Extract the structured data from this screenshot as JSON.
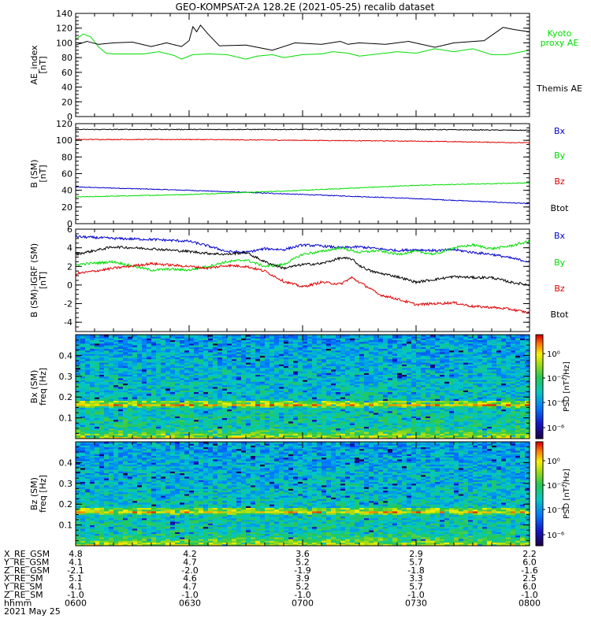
{
  "title": "GEO-KOMPSAT-2A 128.2E (2021-05-25) recalib dataset",
  "chart_data": [
    {
      "type": "line",
      "ylabel": "AE_index\n[nT]",
      "ylim": [
        0,
        140
      ],
      "yticks": [
        0,
        20,
        40,
        60,
        80,
        100,
        120,
        140
      ],
      "xlim": [
        0,
        120
      ],
      "legend": [
        "Kyoto\nproxy AE",
        "Themis AE"
      ],
      "series": [
        {
          "name": "Kyoto\nproxy AE",
          "color": "#00dd00",
          "x": [
            0,
            2,
            4,
            6,
            8,
            10,
            13,
            18,
            22,
            26,
            28,
            31,
            35,
            40,
            45,
            48,
            52,
            55,
            60,
            65,
            68,
            72,
            75,
            80,
            85,
            90,
            95,
            100,
            105,
            110,
            114,
            118,
            120
          ],
          "y": [
            105,
            112,
            108,
            95,
            86,
            85,
            85,
            85,
            88,
            83,
            78,
            84,
            85,
            84,
            78,
            82,
            84,
            80,
            84,
            85,
            88,
            86,
            82,
            85,
            88,
            86,
            92,
            88,
            92,
            84,
            84,
            88,
            90
          ]
        },
        {
          "name": "Themis AE",
          "color": "#000000",
          "x": [
            0,
            3,
            6,
            10,
            15,
            20,
            24,
            28,
            30,
            31,
            32,
            33,
            35,
            38,
            45,
            52,
            58,
            65,
            70,
            72,
            75,
            82,
            88,
            95,
            100,
            108,
            113,
            116,
            120
          ],
          "y": [
            97,
            102,
            98,
            100,
            101,
            95,
            100,
            95,
            103,
            122,
            115,
            124,
            112,
            96,
            97,
            90,
            100,
            98,
            102,
            98,
            100,
            98,
            102,
            94,
            100,
            103,
            121,
            118,
            115
          ]
        }
      ]
    },
    {
      "type": "line",
      "ylabel": "B (SM)\n[nT]",
      "ylim": [
        0,
        120
      ],
      "yticks": [
        0,
        20,
        40,
        60,
        80,
        100,
        120
      ],
      "xlim": [
        0,
        120
      ],
      "legend": [
        "Bx",
        "By",
        "Bz",
        "Btot"
      ],
      "series": [
        {
          "name": "Bx",
          "color": "#0000cc",
          "x": [
            0,
            30,
            60,
            90,
            120
          ],
          "y": [
            44,
            40,
            35,
            30,
            24
          ]
        },
        {
          "name": "By",
          "color": "#00dd00",
          "x": [
            0,
            30,
            60,
            90,
            120
          ],
          "y": [
            32,
            35,
            40,
            46,
            49
          ]
        },
        {
          "name": "Bz",
          "color": "#dd0000",
          "x": [
            0,
            30,
            60,
            90,
            120
          ],
          "y": [
            101,
            101,
            100,
            99,
            97
          ]
        },
        {
          "name": "Btot",
          "color": "#000000",
          "x": [
            0,
            30,
            60,
            90,
            120
          ],
          "y": [
            113,
            113,
            113,
            113,
            112
          ]
        }
      ]
    },
    {
      "type": "line",
      "ylabel": "B (SM)-IGRF (SM)\n[nT]",
      "ylim": [
        -5,
        6
      ],
      "yticks": [
        -4,
        -2,
        0,
        2,
        4,
        6
      ],
      "xlim": [
        0,
        120
      ],
      "legend": [
        "Bx",
        "By",
        "Bz",
        "Btot"
      ],
      "series": [
        {
          "name": "Bx",
          "color": "#0000cc",
          "x": [
            0,
            10,
            20,
            30,
            35,
            40,
            45,
            50,
            55,
            60,
            65,
            70,
            75,
            80,
            85,
            90,
            95,
            100,
            105,
            110,
            115,
            120
          ],
          "y": [
            5.2,
            5.0,
            4.9,
            4.7,
            4.2,
            3.6,
            3.5,
            3.9,
            3.8,
            4.3,
            4.2,
            4.0,
            4.1,
            3.9,
            3.7,
            3.8,
            3.7,
            3.8,
            3.5,
            3.3,
            2.9,
            2.5
          ]
        },
        {
          "name": "By",
          "color": "#00dd00",
          "x": [
            0,
            10,
            20,
            25,
            30,
            35,
            40,
            45,
            50,
            55,
            60,
            65,
            70,
            75,
            80,
            85,
            90,
            95,
            100,
            105,
            110,
            115,
            120
          ],
          "y": [
            2.2,
            2.5,
            1.6,
            1.7,
            1.6,
            2.0,
            2.5,
            2.7,
            2.0,
            2.2,
            3.3,
            3.6,
            4.0,
            3.5,
            3.7,
            3.3,
            3.6,
            3.3,
            4.0,
            4.3,
            3.9,
            4.2,
            4.7
          ]
        },
        {
          "name": "Bz",
          "color": "#dd0000",
          "x": [
            0,
            10,
            20,
            30,
            35,
            40,
            45,
            50,
            55,
            60,
            63,
            65,
            70,
            73,
            75,
            78,
            80,
            85,
            90,
            95,
            100,
            105,
            110,
            115,
            120
          ],
          "y": [
            1.2,
            1.8,
            2.3,
            2.0,
            1.8,
            2.1,
            2.0,
            1.5,
            0.4,
            -0.2,
            0.1,
            0.3,
            0.1,
            0.8,
            0.3,
            -0.4,
            -1.0,
            -1.5,
            -2.1,
            -2.0,
            -1.9,
            -2.3,
            -2.4,
            -2.6,
            -3.0
          ]
        },
        {
          "name": "Btot",
          "color": "#000000",
          "x": [
            0,
            10,
            20,
            30,
            35,
            40,
            45,
            50,
            55,
            60,
            65,
            70,
            73,
            75,
            78,
            80,
            85,
            90,
            95,
            100,
            105,
            110,
            115,
            120
          ],
          "y": [
            3.3,
            4.1,
            3.9,
            3.6,
            3.4,
            3.3,
            3.5,
            2.5,
            1.8,
            2.2,
            2.3,
            2.9,
            2.8,
            2.1,
            1.5,
            1.3,
            0.9,
            0.3,
            0.6,
            0.9,
            0.8,
            0.8,
            0.3,
            0.0
          ]
        }
      ]
    },
    {
      "type": "heatmap",
      "ylabel": "Bx (SM)\nfreq [Hz]",
      "ylim": [
        0,
        0.5
      ],
      "yticks": [
        0.1,
        0.2,
        0.3,
        0.4
      ],
      "xlim": [
        0,
        120
      ],
      "colorbar": {
        "label": "PSD [nT²/Hz]",
        "scale": "log",
        "range": [
          1e-09,
          30
        ],
        "ticks": [
          "10⁰",
          "10⁻²",
          "10⁻⁴",
          "10⁻⁶"
        ]
      }
    },
    {
      "type": "heatmap",
      "ylabel": "Bz (SM)\nfreq [Hz]",
      "ylim": [
        0,
        0.5
      ],
      "yticks": [
        0.1,
        0.2,
        0.3,
        0.4
      ],
      "xlim": [
        0,
        120
      ],
      "colorbar": {
        "label": "PSD [nT²/Hz]",
        "scale": "log",
        "range": [
          1e-09,
          30
        ],
        "ticks": [
          "10⁰",
          "10⁻²",
          "10⁻⁴",
          "10⁻⁶"
        ]
      }
    }
  ],
  "ephemeris": {
    "labels": [
      "X_RE_GSM",
      "Y_RE_GSM",
      "Z_RE_GSM",
      "X_RE_SM",
      "Y_RE_SM",
      "Z_RE_SM",
      "hhmm"
    ],
    "columns": [
      [
        "4.8",
        "4.1",
        "-2.1",
        "5.1",
        "4.1",
        "-1.0",
        "0600"
      ],
      [
        "4.2",
        "4.7",
        "-2.0",
        "4.6",
        "4.7",
        "-1.0",
        "0630"
      ],
      [
        "3.6",
        "5.2",
        "-1.9",
        "3.9",
        "5.2",
        "-1.0",
        "0700"
      ],
      [
        "2.9",
        "5.7",
        "-1.8",
        "3.3",
        "5.7",
        "-1.0",
        "0730"
      ],
      [
        "2.2",
        "6.0",
        "-1.6",
        "2.5",
        "6.0",
        "-1.0",
        "0800"
      ]
    ],
    "date": "2021 May 25"
  }
}
